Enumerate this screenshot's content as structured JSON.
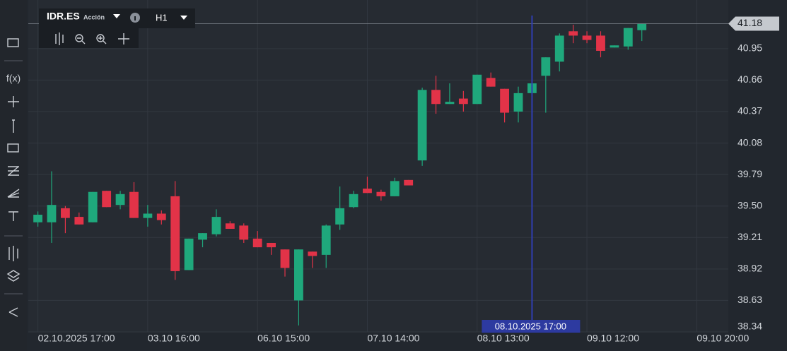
{
  "chart_data": {
    "type": "candlestick",
    "title": "IDR.ES",
    "subtitle": "Acción",
    "timeframe": "H1",
    "open": [
      39.35,
      39.35,
      39.48,
      39.4,
      39.35,
      39.64,
      39.51,
      39.63,
      39.39,
      39.43,
      39.59,
      38.91,
      39.19,
      39.24,
      39.34,
      39.32,
      39.2,
      39.16,
      39.1,
      38.63,
      39.08,
      39.05,
      39.33,
      39.49,
      39.66,
      39.63,
      39.59,
      39.74,
      39.92,
      40.57,
      40.44,
      40.49,
      40.44,
      40.68,
      40.58,
      40.37,
      40.54,
      40.7,
      40.83,
      41.11,
      41.07,
      41.07,
      40.96,
      40.97,
      41.12
    ],
    "high": [
      39.45,
      39.82,
      39.5,
      39.44,
      39.63,
      39.64,
      39.64,
      39.72,
      39.51,
      39.46,
      39.73,
      39.2,
      39.25,
      39.47,
      39.36,
      39.34,
      39.27,
      39.16,
      39.1,
      39.1,
      39.08,
      39.33,
      39.68,
      39.64,
      39.77,
      39.65,
      39.76,
      39.74,
      40.59,
      40.7,
      40.63,
      40.56,
      40.71,
      40.73,
      40.58,
      40.6,
      40.63,
      40.87,
      41.09,
      41.17,
      41.11,
      41.11,
      40.98,
      41.14,
      41.18
    ],
    "low": [
      39.31,
      39.16,
      39.25,
      39.33,
      39.35,
      39.49,
      39.47,
      39.39,
      39.31,
      39.33,
      38.82,
      38.91,
      39.12,
      39.22,
      39.29,
      39.16,
      39.12,
      39.05,
      38.85,
      38.4,
      38.93,
      38.93,
      39.28,
      39.48,
      39.62,
      39.55,
      39.59,
      39.69,
      39.87,
      40.35,
      40.44,
      40.37,
      40.44,
      40.6,
      40.27,
      40.27,
      40.54,
      40.36,
      40.74,
      41.0,
      41.0,
      40.87,
      40.96,
      40.94,
      41.02
    ],
    "close": [
      39.42,
      39.51,
      39.39,
      39.33,
      39.63,
      39.49,
      39.61,
      39.39,
      39.43,
      39.37,
      38.9,
      39.2,
      39.25,
      39.4,
      39.29,
      39.19,
      39.12,
      39.12,
      38.93,
      39.1,
      39.04,
      39.32,
      39.48,
      39.61,
      39.62,
      39.59,
      39.73,
      39.69,
      40.57,
      40.44,
      40.46,
      40.44,
      40.71,
      40.6,
      40.36,
      40.54,
      40.63,
      40.87,
      41.07,
      41.07,
      41.03,
      40.93,
      40.98,
      41.14,
      41.18
    ],
    "up_color": "#1fa87c",
    "down_color": "#e23348",
    "ylim": [
      38.34,
      41.32
    ],
    "yticks": [
      40.95,
      40.66,
      40.37,
      40.08,
      39.79,
      {
        "value": 39.5,
        "label": "39.50"
      },
      39.21,
      38.92,
      38.63,
      38.34
    ],
    "xlim": [
      -0.7,
      50.3
    ],
    "xticks": [
      {
        "value": 0,
        "label": "02.10.2025 17:00"
      },
      {
        "value": 8,
        "label": "03.10 16:00"
      },
      {
        "value": 16,
        "label": "06.10 15:00"
      },
      {
        "value": 24,
        "label": "07.10 14:00"
      },
      {
        "value": 32,
        "label": "08.10 13:00"
      },
      {
        "value": 40,
        "label": "09.10 12:00"
      },
      {
        "value": 48,
        "label": "09.10 20:00"
      }
    ],
    "grid": true,
    "last_price": 41.18,
    "crosshair": {
      "x": 36,
      "label": "08.10.2025 17:00"
    }
  }
}
